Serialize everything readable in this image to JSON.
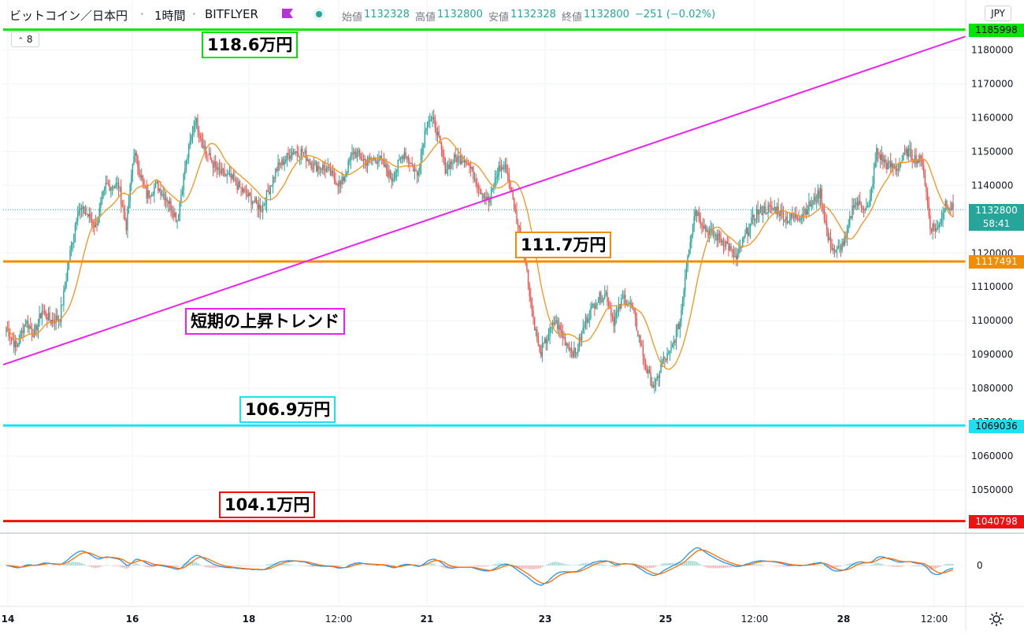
{
  "header": {
    "symbol": "ビットコイン／日本円",
    "interval": "1時間",
    "exchange": "BITFLYER",
    "open_label": "始値",
    "open": "1132328",
    "high_label": "高値",
    "high": "1132800",
    "low_label": "安値",
    "low": "1132328",
    "close_label": "終値",
    "close": "1132800",
    "change": "−251 (−0.02%)",
    "indicator_count": "8",
    "currency": "JPY"
  },
  "annotations": {
    "level_top": "118.6万円",
    "level_mid": "111.7万円",
    "level_low": "106.9万円",
    "level_bottom": "104.1万円",
    "trend": "短期の上昇トレンド"
  },
  "price_tags": {
    "p1185998": "1185998",
    "p1132800": "1132800",
    "countdown": "58:41",
    "p1117491": "1117491",
    "p1069036": "1069036",
    "p1040798": "1040798"
  },
  "colors": {
    "green": "#00e600",
    "orange": "#f28c00",
    "cyan": "#1ee0f0",
    "red": "#f01010",
    "magenta": "#ee22ee",
    "up": "#26a69a",
    "down": "#ef5350",
    "ma": "#f7931a"
  },
  "chart_data": {
    "type": "candlestick",
    "y_axis_ticks": [
      1180000,
      1170000,
      1160000,
      1150000,
      1140000,
      1130000,
      1120000,
      1110000,
      1100000,
      1090000,
      1080000,
      1070000,
      1060000,
      1050000
    ],
    "x_axis_ticks": [
      "14",
      "16",
      "18",
      "12:00",
      "21",
      "23",
      "25",
      "12:00",
      "28",
      "12:00"
    ],
    "horizontal_levels": [
      {
        "price": 1185998,
        "label": "118.6万円",
        "color": "#00e600"
      },
      {
        "price": 1117491,
        "label": "111.7万円",
        "color": "#f28c00"
      },
      {
        "price": 1069036,
        "label": "106.9万円",
        "color": "#1ee0f0"
      },
      {
        "price": 1040798,
        "label": "104.1万円",
        "color": "#f01010"
      }
    ],
    "trend_line": {
      "label": "短期の上昇トレンド",
      "from": [
        "14",
        1087000
      ],
      "to": [
        "12:00",
        1184000
      ]
    },
    "current_price": 1132800,
    "close_path": [
      [
        0,
        1098000
      ],
      [
        8,
        1092000
      ],
      [
        15,
        1100000
      ],
      [
        22,
        1096000
      ],
      [
        28,
        1103000
      ],
      [
        35,
        1100000
      ],
      [
        42,
        1101000
      ],
      [
        46,
        1110000
      ],
      [
        50,
        1120000
      ],
      [
        56,
        1133000
      ],
      [
        62,
        1132000
      ],
      [
        70,
        1128000
      ],
      [
        78,
        1140000
      ],
      [
        88,
        1140000
      ],
      [
        94,
        1128000
      ],
      [
        100,
        1150000
      ],
      [
        110,
        1137000
      ],
      [
        118,
        1140000
      ],
      [
        126,
        1136000
      ],
      [
        134,
        1130000
      ],
      [
        140,
        1145000
      ],
      [
        148,
        1160000
      ],
      [
        156,
        1150000
      ],
      [
        166,
        1144000
      ],
      [
        176,
        1142000
      ],
      [
        186,
        1138000
      ],
      [
        200,
        1133000
      ],
      [
        212,
        1145000
      ],
      [
        224,
        1150000
      ],
      [
        232,
        1150000
      ],
      [
        240,
        1146000
      ],
      [
        250,
        1145000
      ],
      [
        262,
        1140000
      ],
      [
        272,
        1150000
      ],
      [
        282,
        1147000
      ],
      [
        292,
        1148000
      ],
      [
        302,
        1142000
      ],
      [
        312,
        1150000
      ],
      [
        322,
        1143000
      ],
      [
        330,
        1160000
      ],
      [
        336,
        1158000
      ],
      [
        344,
        1145000
      ],
      [
        352,
        1148000
      ],
      [
        360,
        1148000
      ],
      [
        370,
        1140000
      ],
      [
        378,
        1135000
      ],
      [
        386,
        1145000
      ],
      [
        392,
        1145000
      ],
      [
        400,
        1130000
      ],
      [
        406,
        1120000
      ],
      [
        412,
        1103000
      ],
      [
        418,
        1090000
      ],
      [
        424,
        1095000
      ],
      [
        430,
        1100000
      ],
      [
        438,
        1094000
      ],
      [
        446,
        1090000
      ],
      [
        454,
        1100000
      ],
      [
        462,
        1106000
      ],
      [
        470,
        1108000
      ],
      [
        476,
        1100000
      ],
      [
        484,
        1107000
      ],
      [
        490,
        1104000
      ],
      [
        496,
        1095000
      ],
      [
        502,
        1085000
      ],
      [
        508,
        1080000
      ],
      [
        514,
        1088000
      ],
      [
        520,
        1090000
      ],
      [
        528,
        1100000
      ],
      [
        534,
        1120000
      ],
      [
        540,
        1133000
      ],
      [
        548,
        1127000
      ],
      [
        556,
        1125000
      ],
      [
        564,
        1123000
      ],
      [
        572,
        1118000
      ],
      [
        580,
        1126000
      ],
      [
        588,
        1132000
      ],
      [
        596,
        1133000
      ],
      [
        604,
        1133000
      ],
      [
        612,
        1130000
      ],
      [
        622,
        1131000
      ],
      [
        632,
        1135000
      ],
      [
        638,
        1138000
      ],
      [
        644,
        1124000
      ],
      [
        650,
        1120000
      ],
      [
        658,
        1124000
      ],
      [
        664,
        1135000
      ],
      [
        670,
        1134000
      ],
      [
        676,
        1133000
      ],
      [
        682,
        1150000
      ],
      [
        690,
        1146000
      ],
      [
        698,
        1145000
      ],
      [
        706,
        1150000
      ],
      [
        712,
        1148000
      ],
      [
        718,
        1147000
      ],
      [
        724,
        1128000
      ],
      [
        730,
        1127000
      ],
      [
        736,
        1135000
      ],
      [
        742,
        1133000
      ]
    ]
  }
}
